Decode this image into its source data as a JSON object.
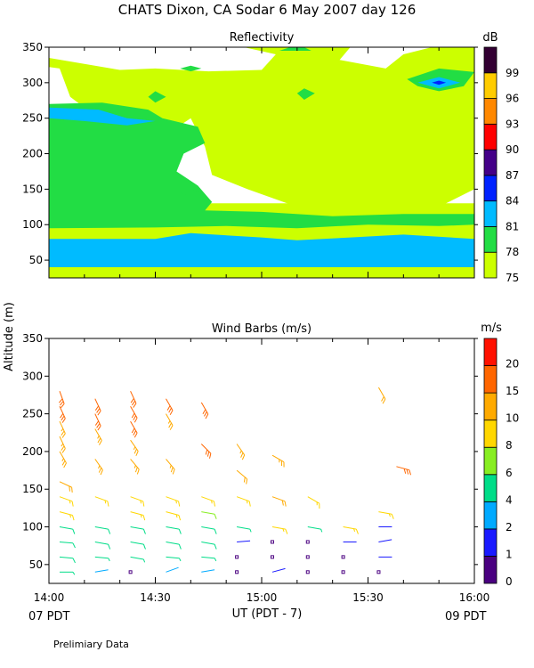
{
  "header": {
    "title": "CHATS Dixon, CA  Sodar   6 May 2007  day 126"
  },
  "footer": {
    "note": "Prelimiary Data",
    "left_pdt": "07 PDT",
    "right_pdt": "09 PDT",
    "xlabel": "UT  (PDT - 7)"
  },
  "shared_ylabel": "Altitude (m)",
  "chart_data": [
    {
      "type": "heatmap",
      "title": "Reflectivity",
      "colorbar_label": "dB",
      "xlim": [
        0,
        120
      ],
      "ylim": [
        25,
        350
      ],
      "yticks": [
        50,
        100,
        150,
        200,
        250,
        300,
        350
      ],
      "xticks_minutes": [
        0,
        30,
        60,
        90,
        120
      ],
      "xtick_labels": [
        "14:00",
        "14:30",
        "15:00",
        "15:30",
        "16:00"
      ],
      "levels": [
        {
          "label": "75",
          "color": "#ccff00"
        },
        {
          "label": "78",
          "color": "#22dd44"
        },
        {
          "label": "81",
          "color": "#00bbff"
        },
        {
          "label": "84",
          "color": "#0022ff"
        },
        {
          "label": "87",
          "color": "#440088"
        },
        {
          "label": "90",
          "color": "#ff0000"
        },
        {
          "label": "93",
          "color": "#ff8800"
        },
        {
          "label": "96",
          "color": "#ffcc00"
        },
        {
          "label": "99",
          "color": "#330033"
        }
      ],
      "contours": [
        {
          "level": 0,
          "points": [
            [
              0,
              335
            ],
            [
              20,
              318
            ],
            [
              30,
              320
            ],
            [
              45,
              316
            ],
            [
              60,
              318
            ],
            [
              64,
              340
            ],
            [
              55,
              350
            ],
            [
              85,
              350
            ],
            [
              82,
              332
            ],
            [
              95,
              320
            ],
            [
              100,
              340
            ],
            [
              108,
              350
            ],
            [
              120,
              350
            ],
            [
              120,
              150
            ],
            [
              110,
              125
            ],
            [
              100,
              122
            ],
            [
              80,
              120
            ],
            [
              70,
              125
            ],
            [
              56,
              150
            ],
            [
              46,
              170
            ],
            [
              44,
              210
            ],
            [
              40,
              250
            ],
            [
              34,
              230
            ],
            [
              28,
              240
            ],
            [
              22,
              232
            ],
            [
              14,
              240
            ],
            [
              10,
              265
            ],
            [
              6,
              280
            ],
            [
              3,
              320
            ],
            [
              0,
              322
            ]
          ]
        },
        {
          "level": 0,
          "points": [
            [
              0,
              25
            ],
            [
              120,
              25
            ],
            [
              120,
              130
            ],
            [
              0,
              130
            ]
          ]
        },
        {
          "level": 1,
          "points": [
            [
              0,
              270
            ],
            [
              15,
              272
            ],
            [
              28,
              262
            ],
            [
              32,
              250
            ],
            [
              42,
              238
            ],
            [
              44,
              215
            ],
            [
              38,
              200
            ],
            [
              36,
              175
            ],
            [
              42,
              155
            ],
            [
              46,
              132
            ],
            [
              44,
              120
            ],
            [
              60,
              118
            ],
            [
              80,
              112
            ],
            [
              100,
              115
            ],
            [
              120,
              115
            ],
            [
              120,
              100
            ],
            [
              110,
              98
            ],
            [
              90,
              100
            ],
            [
              70,
              95
            ],
            [
              50,
              98
            ],
            [
              30,
              96
            ],
            [
              0,
              95
            ]
          ]
        },
        {
          "level": 1,
          "points": [
            [
              28,
              280
            ],
            [
              30,
              288
            ],
            [
              33,
              280
            ],
            [
              30,
              272
            ]
          ]
        },
        {
          "level": 1,
          "points": [
            [
              70,
              285
            ],
            [
              72,
              292
            ],
            [
              75,
              285
            ],
            [
              72,
              276
            ]
          ]
        },
        {
          "level": 1,
          "points": [
            [
              37,
              320
            ],
            [
              40,
              324
            ],
            [
              43,
              320
            ],
            [
              40,
              316
            ]
          ]
        },
        {
          "level": 1,
          "points": [
            [
              37,
              145
            ],
            [
              40,
              150
            ],
            [
              43,
              145
            ],
            [
              40,
              140
            ]
          ]
        },
        {
          "level": 1,
          "points": [
            [
              65,
              345
            ],
            [
              68,
              350
            ],
            [
              72,
              350
            ],
            [
              74,
              345
            ]
          ]
        },
        {
          "level": 1,
          "points": [
            [
              101,
              305
            ],
            [
              110,
              320
            ],
            [
              120,
              315
            ],
            [
              117,
              295
            ],
            [
              110,
              288
            ],
            [
              104,
              295
            ]
          ]
        },
        {
          "level": 2,
          "points": [
            [
              0,
              80
            ],
            [
              30,
              80
            ],
            [
              40,
              88
            ],
            [
              60,
              82
            ],
            [
              70,
              78
            ],
            [
              85,
              82
            ],
            [
              100,
              86
            ],
            [
              120,
              80
            ],
            [
              120,
              40
            ],
            [
              0,
              40
            ]
          ]
        },
        {
          "level": 2,
          "points": [
            [
              0,
              265
            ],
            [
              14,
              262
            ],
            [
              22,
              250
            ],
            [
              30,
              246
            ],
            [
              22,
              240
            ],
            [
              10,
              246
            ],
            [
              0,
              250
            ]
          ]
        },
        {
          "level": 2,
          "points": [
            [
              104,
              300
            ],
            [
              110,
              308
            ],
            [
              116,
              300
            ],
            [
              110,
              292
            ]
          ]
        },
        {
          "level": 3,
          "points": [
            [
              108,
              300
            ],
            [
              110,
              303
            ],
            [
              112,
              300
            ],
            [
              110,
              297
            ]
          ]
        }
      ]
    },
    {
      "type": "scatter",
      "title": "Wind Barbs (m/s)",
      "colorbar_label": "m/s",
      "xlim": [
        0,
        120
      ],
      "ylim": [
        25,
        350
      ],
      "yticks": [
        50,
        100,
        150,
        200,
        250,
        300,
        350
      ],
      "xticks_minutes": [
        0,
        30,
        60,
        90,
        120
      ],
      "xtick_labels": [
        "14:00",
        "14:30",
        "15:00",
        "15:30",
        "16:00"
      ],
      "levels": [
        {
          "label": "0",
          "color": "#4a0080"
        },
        {
          "label": "1",
          "color": "#1a1aff"
        },
        {
          "label": "2",
          "color": "#00aaff"
        },
        {
          "label": "4",
          "color": "#00dd88"
        },
        {
          "label": "6",
          "color": "#88ee22"
        },
        {
          "label": "8",
          "color": "#ffd700"
        },
        {
          "label": "10",
          "color": "#ffaa00"
        },
        {
          "label": "15",
          "color": "#ff6600"
        },
        {
          "label": "20",
          "color": "#ff1100"
        }
      ],
      "barbs": [
        {
          "t": 3,
          "z": 40,
          "speed": 4,
          "dir": 90
        },
        {
          "t": 3,
          "z": 60,
          "speed": 5,
          "dir": 95
        },
        {
          "t": 3,
          "z": 80,
          "speed": 5,
          "dir": 95
        },
        {
          "t": 3,
          "z": 100,
          "speed": 5,
          "dir": 100
        },
        {
          "t": 3,
          "z": 120,
          "speed": 8,
          "dir": 105
        },
        {
          "t": 3,
          "z": 140,
          "speed": 9,
          "dir": 110
        },
        {
          "t": 3,
          "z": 160,
          "speed": 10,
          "dir": 115
        },
        {
          "t": 3,
          "z": 200,
          "speed": 13,
          "dir": 150
        },
        {
          "t": 3,
          "z": 220,
          "speed": 14,
          "dir": 155
        },
        {
          "t": 3,
          "z": 240,
          "speed": 14,
          "dir": 155
        },
        {
          "t": 3,
          "z": 260,
          "speed": 15,
          "dir": 155
        },
        {
          "t": 3,
          "z": 280,
          "speed": 15,
          "dir": 160
        },
        {
          "t": 13,
          "z": 40,
          "speed": 2,
          "dir": 80
        },
        {
          "t": 13,
          "z": 60,
          "speed": 4,
          "dir": 95
        },
        {
          "t": 13,
          "z": 80,
          "speed": 5,
          "dir": 100
        },
        {
          "t": 13,
          "z": 100,
          "speed": 5,
          "dir": 100
        },
        {
          "t": 13,
          "z": 140,
          "speed": 9,
          "dir": 110
        },
        {
          "t": 13,
          "z": 190,
          "speed": 13,
          "dir": 145
        },
        {
          "t": 13,
          "z": 230,
          "speed": 14,
          "dir": 150
        },
        {
          "t": 13,
          "z": 250,
          "speed": 15,
          "dir": 155
        },
        {
          "t": 13,
          "z": 270,
          "speed": 15,
          "dir": 155
        },
        {
          "t": 23,
          "z": 40,
          "speed": 0.5,
          "dir": 0
        },
        {
          "t": 23,
          "z": 60,
          "speed": 4,
          "dir": 100
        },
        {
          "t": 23,
          "z": 80,
          "speed": 5,
          "dir": 100
        },
        {
          "t": 23,
          "z": 100,
          "speed": 5,
          "dir": 100
        },
        {
          "t": 23,
          "z": 120,
          "speed": 8,
          "dir": 105
        },
        {
          "t": 23,
          "z": 140,
          "speed": 9,
          "dir": 110
        },
        {
          "t": 23,
          "z": 190,
          "speed": 13,
          "dir": 140
        },
        {
          "t": 23,
          "z": 215,
          "speed": 14,
          "dir": 145
        },
        {
          "t": 23,
          "z": 240,
          "speed": 15,
          "dir": 150
        },
        {
          "t": 23,
          "z": 260,
          "speed": 15,
          "dir": 150
        },
        {
          "t": 23,
          "z": 280,
          "speed": 16,
          "dir": 155
        },
        {
          "t": 33,
          "z": 40,
          "speed": 2,
          "dir": 70
        },
        {
          "t": 33,
          "z": 60,
          "speed": 4,
          "dir": 95
        },
        {
          "t": 33,
          "z": 80,
          "speed": 5,
          "dir": 100
        },
        {
          "t": 33,
          "z": 100,
          "speed": 5,
          "dir": 100
        },
        {
          "t": 33,
          "z": 120,
          "speed": 8,
          "dir": 105
        },
        {
          "t": 33,
          "z": 140,
          "speed": 9,
          "dir": 110
        },
        {
          "t": 33,
          "z": 190,
          "speed": 13,
          "dir": 140
        },
        {
          "t": 33,
          "z": 250,
          "speed": 14,
          "dir": 150
        },
        {
          "t": 33,
          "z": 270,
          "speed": 15,
          "dir": 150
        },
        {
          "t": 43,
          "z": 40,
          "speed": 2,
          "dir": 80
        },
        {
          "t": 43,
          "z": 60,
          "speed": 4,
          "dir": 95
        },
        {
          "t": 43,
          "z": 80,
          "speed": 5,
          "dir": 100
        },
        {
          "t": 43,
          "z": 100,
          "speed": 5,
          "dir": 100
        },
        {
          "t": 43,
          "z": 120,
          "speed": 6,
          "dir": 100
        },
        {
          "t": 43,
          "z": 140,
          "speed": 9,
          "dir": 110
        },
        {
          "t": 43,
          "z": 210,
          "speed": 15,
          "dir": 135
        },
        {
          "t": 43,
          "z": 265,
          "speed": 16,
          "dir": 150
        },
        {
          "t": 53,
          "z": 40,
          "speed": 0.5,
          "dir": 0
        },
        {
          "t": 53,
          "z": 60,
          "speed": 0.5,
          "dir": 0
        },
        {
          "t": 53,
          "z": 80,
          "speed": 1,
          "dir": 85
        },
        {
          "t": 53,
          "z": 100,
          "speed": 4,
          "dir": 100
        },
        {
          "t": 53,
          "z": 140,
          "speed": 9,
          "dir": 110
        },
        {
          "t": 53,
          "z": 175,
          "speed": 12,
          "dir": 130
        },
        {
          "t": 53,
          "z": 210,
          "speed": 13,
          "dir": 145
        },
        {
          "t": 63,
          "z": 40,
          "speed": 1,
          "dir": 75
        },
        {
          "t": 63,
          "z": 60,
          "speed": 0.5,
          "dir": 0
        },
        {
          "t": 63,
          "z": 80,
          "speed": 0.5,
          "dir": 0
        },
        {
          "t": 63,
          "z": 100,
          "speed": 8,
          "dir": 100
        },
        {
          "t": 63,
          "z": 140,
          "speed": 10,
          "dir": 110
        },
        {
          "t": 63,
          "z": 195,
          "speed": 13,
          "dir": 120
        },
        {
          "t": 73,
          "z": 40,
          "speed": 0.5,
          "dir": 0
        },
        {
          "t": 73,
          "z": 60,
          "speed": 0.5,
          "dir": 0
        },
        {
          "t": 73,
          "z": 80,
          "speed": 0.5,
          "dir": 0
        },
        {
          "t": 73,
          "z": 100,
          "speed": 4,
          "dir": 100
        },
        {
          "t": 73,
          "z": 140,
          "speed": 8,
          "dir": 120
        },
        {
          "t": 83,
          "z": 40,
          "speed": 0.5,
          "dir": 0
        },
        {
          "t": 83,
          "z": 60,
          "speed": 0.5,
          "dir": 0
        },
        {
          "t": 83,
          "z": 80,
          "speed": 1,
          "dir": 90
        },
        {
          "t": 83,
          "z": 100,
          "speed": 8,
          "dir": 100
        },
        {
          "t": 93,
          "z": 40,
          "speed": 0.5,
          "dir": 0
        },
        {
          "t": 93,
          "z": 60,
          "speed": 1,
          "dir": 90
        },
        {
          "t": 93,
          "z": 80,
          "speed": 1,
          "dir": 80
        },
        {
          "t": 93,
          "z": 100,
          "speed": 1,
          "dir": 90
        },
        {
          "t": 93,
          "z": 120,
          "speed": 8,
          "dir": 100
        },
        {
          "t": 93,
          "z": 285,
          "speed": 10,
          "dir": 150
        },
        {
          "t": 98,
          "z": 180,
          "speed": 15,
          "dir": 105
        }
      ]
    }
  ]
}
